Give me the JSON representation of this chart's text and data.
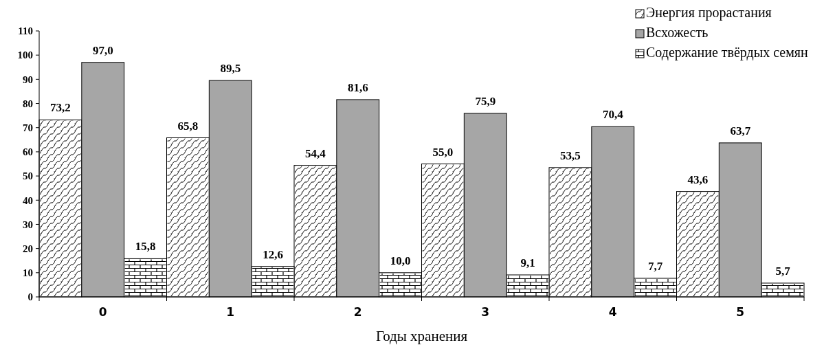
{
  "chart_data": {
    "type": "bar",
    "xlabel": "Годы хранения",
    "categories": [
      "0",
      "1",
      "2",
      "3",
      "4",
      "5"
    ],
    "ylim": [
      0,
      110
    ],
    "yticks": [
      0,
      10,
      20,
      30,
      40,
      50,
      60,
      70,
      80,
      90,
      100,
      110
    ],
    "grid": false,
    "legend": "top right",
    "series": [
      {
        "name": "Энергия прорастания",
        "color": "#ffffff",
        "values": [
          73.2,
          65.8,
          54.4,
          55.0,
          53.5,
          43.6
        ],
        "value_labels": [
          "73,2",
          "65,8",
          "54,4",
          "55,0",
          "53,5",
          "43,6"
        ]
      },
      {
        "name": "Всхожесть",
        "color": "#a6a6a6",
        "values": [
          97.0,
          89.5,
          81.6,
          75.9,
          70.4,
          63.7
        ],
        "value_labels": [
          "97,0",
          "89,5",
          "81,6",
          "75,9",
          "70,4",
          "63,7"
        ]
      },
      {
        "name": "Содержание твёрдых семян",
        "color": "#ffffff",
        "values": [
          15.8,
          12.6,
          10.0,
          9.1,
          7.7,
          5.7
        ],
        "value_labels": [
          "15,8",
          "12,6",
          "10,0",
          "9,1",
          "7,7",
          "5,7"
        ]
      }
    ]
  }
}
